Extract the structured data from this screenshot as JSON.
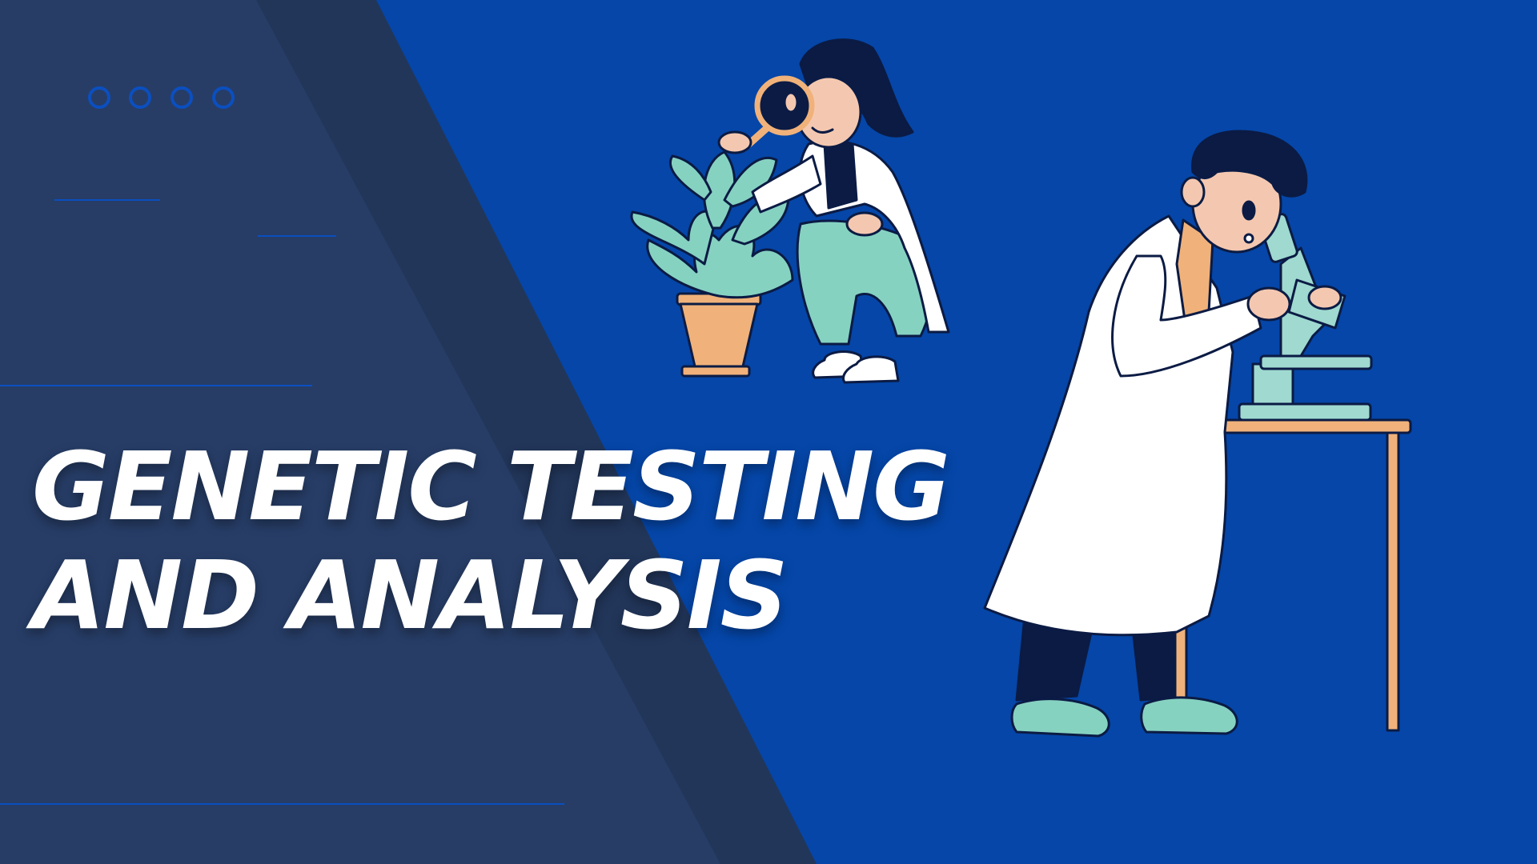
{
  "title": {
    "line1": "GENETIC TESTING",
    "line2": "AND ANALYSIS"
  },
  "colors": {
    "background_blue": "#0546a8",
    "panel_dark": "#22365a",
    "panel_light": "#273d66",
    "title_text": "#ffffff",
    "accent_line": "#0a4bb0",
    "mint": "#86d2c1",
    "skin": "#f4c8b0",
    "hair": "#0b1b44",
    "orange": "#f0b27a"
  },
  "icons": {
    "dots": "four-circle-outline-icons",
    "illustration_left": "scientist-with-magnifying-glass-and-plant",
    "illustration_right": "scientist-with-microscope"
  }
}
